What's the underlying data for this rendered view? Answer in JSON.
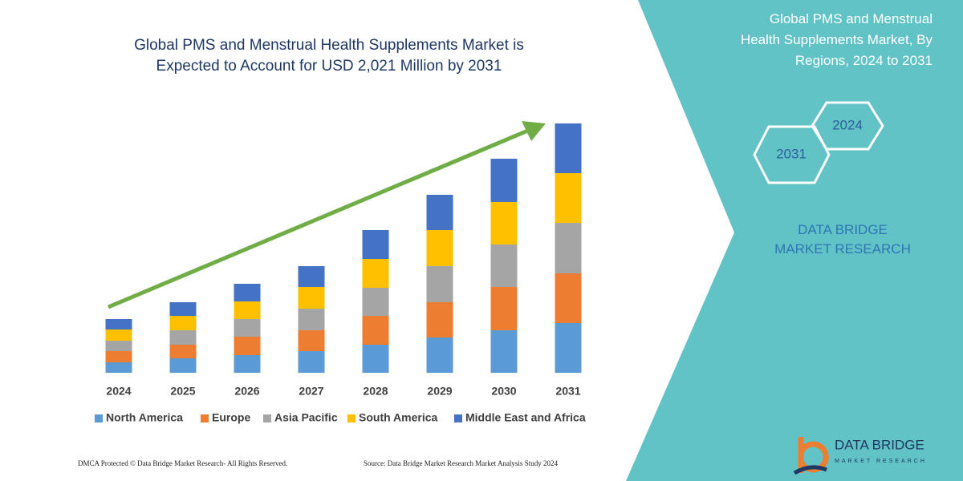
{
  "chart_data": {
    "type": "bar",
    "stacked": true,
    "title": "Global PMS and Menstrual Health Supplements Market is Expected to Account for USD 2,021 Million by 2031",
    "categories": [
      "2024",
      "2025",
      "2026",
      "2027",
      "2028",
      "2029",
      "2030",
      "2031"
    ],
    "series": [
      {
        "name": "North America",
        "color": "#5b9bd5",
        "values": [
          13,
          18,
          22,
          27,
          35,
          44,
          53,
          62
        ]
      },
      {
        "name": "Europe",
        "color": "#ed7d31",
        "values": [
          14,
          17,
          23,
          26,
          36,
          44,
          54,
          62
        ]
      },
      {
        "name": "Asia Pacific",
        "color": "#a5a5a5",
        "values": [
          13,
          18,
          22,
          27,
          35,
          45,
          53,
          63
        ]
      },
      {
        "name": "South America",
        "color": "#ffc000",
        "values": [
          14,
          18,
          22,
          27,
          36,
          45,
          53,
          62
        ]
      },
      {
        "name": "Middle East and Africa",
        "color": "#4472c4",
        "values": [
          13,
          17,
          22,
          26,
          36,
          44,
          54,
          62
        ]
      }
    ]
  },
  "side_panel": {
    "title": "Global PMS and Menstrual Health Supplements Market, By Regions, 2024 to 2031",
    "hexagons": [
      "2024",
      "2031"
    ],
    "brand": "DATA BRIDGE MARKET RESEARCH"
  },
  "logo": {
    "name": "DATA BRIDGE",
    "tagline": "MARKET RESEARCH"
  },
  "footer": {
    "copyright": "DMCA Protected © Data Bridge Market Research-  All Rights Reserved.",
    "source": "Source: Data Bridge Market Research  Market Analysis Study 2024"
  }
}
